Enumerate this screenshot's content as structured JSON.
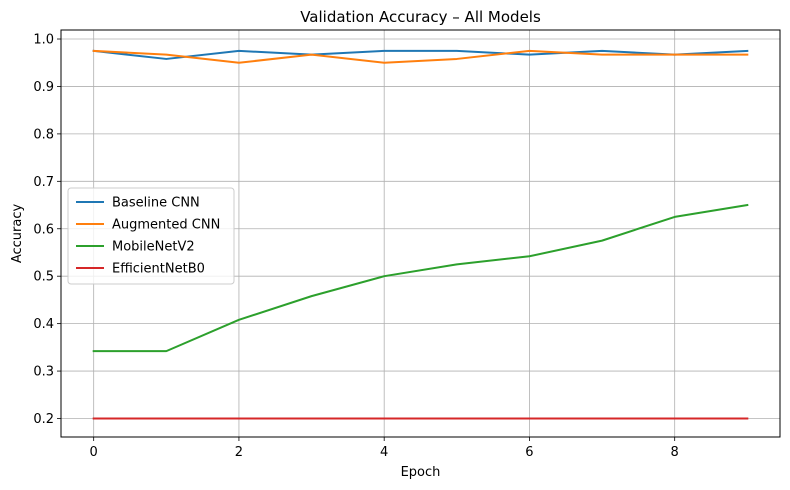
{
  "chart_data": {
    "type": "line",
    "title": "Validation Accuracy – All Models",
    "xlabel": "Epoch",
    "ylabel": "Accuracy",
    "x": [
      0,
      1,
      2,
      3,
      4,
      5,
      6,
      7,
      8,
      9
    ],
    "xlim": [
      -0.45,
      9.45
    ],
    "ylim": [
      0.161,
      1.019
    ],
    "xticks": [
      0,
      2,
      4,
      6,
      8
    ],
    "yticks": [
      0.2,
      0.3,
      0.4,
      0.5,
      0.6,
      0.7,
      0.8,
      0.9,
      1.0
    ],
    "xtick_labels": [
      "0",
      "2",
      "4",
      "6",
      "8"
    ],
    "ytick_labels": [
      "0.2",
      "0.3",
      "0.4",
      "0.5",
      "0.6",
      "0.7",
      "0.8",
      "0.9",
      "1.0"
    ],
    "grid": true,
    "legend_position": "center-left",
    "series": [
      {
        "name": "Baseline CNN",
        "color": "#1f77b4",
        "values": [
          0.975,
          0.958,
          0.975,
          0.967,
          0.975,
          0.975,
          0.967,
          0.975,
          0.967,
          0.975
        ]
      },
      {
        "name": "Augmented CNN",
        "color": "#ff7f0e",
        "values": [
          0.975,
          0.967,
          0.95,
          0.967,
          0.95,
          0.958,
          0.975,
          0.967,
          0.967,
          0.967
        ]
      },
      {
        "name": "MobileNetV2",
        "color": "#2ca02c",
        "values": [
          0.342,
          0.342,
          0.408,
          0.458,
          0.5,
          0.525,
          0.542,
          0.575,
          0.625,
          0.65
        ]
      },
      {
        "name": "EfficientNetB0",
        "color": "#d62728",
        "values": [
          0.2,
          0.2,
          0.2,
          0.2,
          0.2,
          0.2,
          0.2,
          0.2,
          0.2,
          0.2
        ]
      }
    ]
  }
}
